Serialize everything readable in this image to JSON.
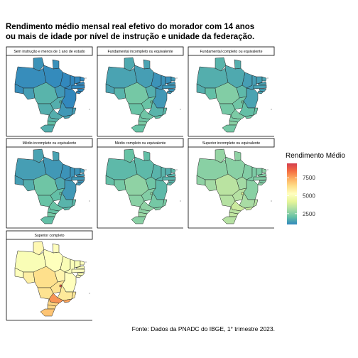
{
  "chart_data": {
    "type": "choropleth",
    "title": [
      "Rendimento médio mensal real efetivo do morador com 14 anos",
      "ou mais de idade por nível de instrução e unidade da federação."
    ],
    "caption": "Fonte: Dados da PNADC do IBGE, 1° trimestre 2023.",
    "legend": {
      "title": "Rendimento Médio",
      "ticks": [
        2500,
        5000,
        7500
      ],
      "range": [
        1000,
        9500
      ],
      "colors": [
        "#3288bd",
        "#66c2a5",
        "#abdda4",
        "#e6f598",
        "#ffffbf",
        "#fee08b",
        "#fdae61",
        "#f46d43",
        "#d53e4f"
      ]
    },
    "regions": [
      "AC",
      "AM",
      "RR",
      "PA",
      "AP",
      "MA",
      "PI",
      "CE",
      "RN",
      "PB",
      "PE",
      "AL",
      "SE",
      "BA",
      "TO",
      "RO",
      "MT",
      "GO",
      "DF",
      "MS",
      "MG",
      "ES",
      "RJ",
      "SP",
      "PR",
      "SC",
      "RS"
    ],
    "panels": [
      {
        "label": "Sem instrução e menos de 1 ano de estudo",
        "values": {
          "AC": 1100,
          "AM": 1100,
          "RR": 1200,
          "PA": 1050,
          "AP": 1150,
          "MA": 950,
          "PI": 900,
          "CE": 900,
          "RN": 1000,
          "PB": 950,
          "PE": 950,
          "AL": 900,
          "SE": 1000,
          "BA": 950,
          "TO": 1300,
          "RO": 1400,
          "MT": 1800,
          "GO": 1700,
          "DF": 1900,
          "MS": 1700,
          "MG": 1300,
          "ES": 1400,
          "RJ": 1500,
          "SP": 1700,
          "PR": 1800,
          "SC": 2000,
          "RS": 1700
        }
      },
      {
        "label": "Fundamental incompleto ou equivalente",
        "values": {
          "AC": 1500,
          "AM": 1500,
          "RR": 1600,
          "PA": 1400,
          "AP": 1500,
          "MA": 1200,
          "PI": 1200,
          "CE": 1150,
          "RN": 1300,
          "PB": 1250,
          "PE": 1250,
          "AL": 1200,
          "SE": 1300,
          "BA": 1300,
          "TO": 1700,
          "RO": 1800,
          "MT": 2300,
          "GO": 2100,
          "DF": 2300,
          "MS": 2100,
          "MG": 1800,
          "ES": 1900,
          "RJ": 2000,
          "SP": 2200,
          "PR": 2200,
          "SC": 2400,
          "RS": 2100
        }
      },
      {
        "label": "Fundamental completo ou equivalente",
        "values": {
          "AC": 1700,
          "AM": 1700,
          "RR": 1800,
          "PA": 1600,
          "AP": 1700,
          "MA": 1400,
          "PI": 1400,
          "CE": 1400,
          "RN": 1500,
          "PB": 1450,
          "PE": 1450,
          "AL": 1400,
          "SE": 1500,
          "BA": 1500,
          "TO": 1900,
          "RO": 2000,
          "MT": 2500,
          "GO": 2200,
          "DF": 2400,
          "MS": 2300,
          "MG": 2000,
          "ES": 2100,
          "RJ": 2200,
          "SP": 2400,
          "PR": 2400,
          "SC": 2600,
          "RS": 2300
        }
      },
      {
        "label": "Médio incompleto ou equivalente",
        "values": {
          "AC": 1400,
          "AM": 1400,
          "RR": 1500,
          "PA": 1300,
          "AP": 1500,
          "MA": 1200,
          "PI": 1200,
          "CE": 1200,
          "RN": 1300,
          "PB": 1300,
          "PE": 1300,
          "AL": 1200,
          "SE": 1300,
          "BA": 1300,
          "TO": 1600,
          "RO": 1700,
          "MT": 2200,
          "GO": 2000,
          "DF": 2200,
          "MS": 2100,
          "MG": 1800,
          "ES": 1900,
          "RJ": 1900,
          "SP": 2100,
          "PR": 2100,
          "SC": 2300,
          "RS": 2000
        }
      },
      {
        "label": "Médio completo ou equivalente",
        "values": {
          "AC": 2000,
          "AM": 1900,
          "RR": 2100,
          "PA": 1900,
          "AP": 2000,
          "MA": 1800,
          "PI": 1800,
          "CE": 1700,
          "RN": 1900,
          "PB": 1800,
          "PE": 1800,
          "AL": 1800,
          "SE": 1900,
          "BA": 1900,
          "TO": 2200,
          "RO": 2300,
          "MT": 2700,
          "GO": 2500,
          "DF": 2800,
          "MS": 2600,
          "MG": 2300,
          "ES": 2400,
          "RJ": 2500,
          "SP": 2700,
          "PR": 2700,
          "SC": 2900,
          "RS": 2600
        }
      },
      {
        "label": "Superior incompleto ou equivalente",
        "values": {
          "AC": 2700,
          "AM": 2600,
          "RR": 2800,
          "PA": 2600,
          "AP": 2700,
          "MA": 2500,
          "PI": 2400,
          "CE": 2400,
          "RN": 2600,
          "PB": 2500,
          "PE": 2500,
          "AL": 2400,
          "SE": 2600,
          "BA": 2600,
          "TO": 3000,
          "RO": 3000,
          "MT": 3400,
          "GO": 3300,
          "DF": 4200,
          "MS": 3300,
          "MG": 3100,
          "ES": 3300,
          "RJ": 3600,
          "SP": 3700,
          "PR": 3400,
          "SC": 3500,
          "RS": 3300
        }
      },
      {
        "label": "Superior completo",
        "values": {
          "AC": 5200,
          "AM": 5000,
          "RR": 5500,
          "PA": 5200,
          "AP": 5300,
          "MA": 5000,
          "PI": 5100,
          "CE": 5000,
          "RN": 5200,
          "PB": 5100,
          "PE": 5200,
          "AL": 5000,
          "SE": 5300,
          "BA": 5300,
          "TO": 5600,
          "RO": 5800,
          "MT": 6300,
          "GO": 6200,
          "DF": 9000,
          "MS": 6200,
          "MG": 6000,
          "ES": 6000,
          "RJ": 7500,
          "SP": 7800,
          "PR": 6600,
          "SC": 6500,
          "RS": 6900
        }
      }
    ]
  }
}
